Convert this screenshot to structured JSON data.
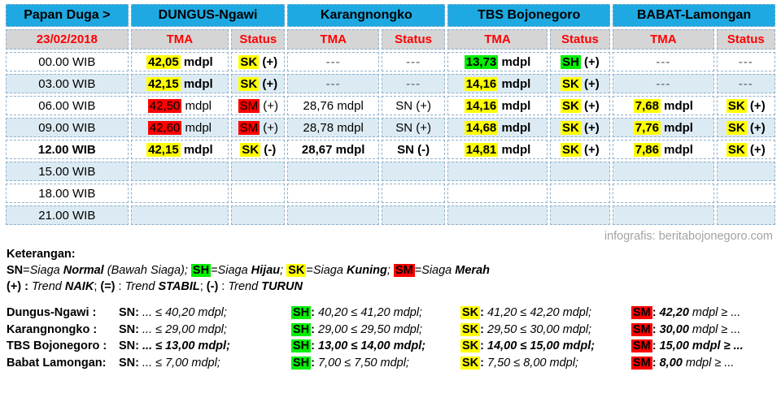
{
  "colors": {
    "header_bg": "#1ea9e2",
    "subheader_bg": "#d5d5d5",
    "alt_row_bg": "#dcebf3",
    "header_text": "#ff0000",
    "highlight_yellow": "#ffff00",
    "highlight_green": "#00ef00",
    "highlight_red": "#ff0000",
    "credit_text": "#a3a3a3"
  },
  "chart_data": {
    "type": "table",
    "title": "Papan Duga >",
    "date": "23/02/2018",
    "columns": [
      "Time",
      "DUNGUS-Ngawi TMA",
      "DUNGUS-Ngawi Status",
      "Karangnongko TMA",
      "Karangnongko Status",
      "TBS Bojonegoro TMA",
      "TBS Bojonegoro Status",
      "BABAT-Lamongan TMA",
      "BABAT-Lamongan Status"
    ],
    "rows": [
      [
        "00.00 WIB",
        "42,05 mdpl",
        "SK (+)",
        "---",
        "---",
        "13,73 mdpl",
        "SH (+)",
        "---",
        "---"
      ],
      [
        "03.00 WIB",
        "42,15 mdpl",
        "SK (+)",
        "---",
        "---",
        "14,16 mdpl",
        "SK (+)",
        "---",
        "---"
      ],
      [
        "06.00 WIB",
        "42,50 mdpl",
        "SM (+)",
        "28,76 mdpl",
        "SN (+)",
        "14,16 mdpl",
        "SK (+)",
        "7,68 mdpl",
        "SK (+)"
      ],
      [
        "09.00 WIB",
        "42,60 mdpl",
        "SM (+)",
        "28,78 mdpl",
        "SN (+)",
        "14,68 mdpl",
        "SK (+)",
        "7,76 mdpl",
        "SK (+)"
      ],
      [
        "12.00 WIB",
        "42,15 mdpl",
        "SK (-)",
        "28,67 mdpl",
        "SN (-)",
        "14,81 mdpl",
        "SK (+)",
        "7,86 mdpl",
        "SK (+)"
      ],
      [
        "15.00 WIB",
        "",
        "",
        "",
        "",
        "",
        "",
        "",
        ""
      ],
      [
        "18.00 WIB",
        "",
        "",
        "",
        "",
        "",
        "",
        "",
        ""
      ],
      [
        "21.00 WIB",
        "",
        "",
        "",
        "",
        "",
        "",
        "",
        ""
      ]
    ]
  },
  "table": {
    "corner": "Papan Duga >",
    "date": "23/02/2018",
    "stations": [
      "DUNGUS-Ngawi",
      "Karangnongko",
      "TBS Bojonegoro",
      "BABAT-Lamongan"
    ],
    "tma_label": "TMA",
    "status_label": "Status",
    "rows": [
      {
        "time": "00.00 WIB",
        "bold": false,
        "cells": [
          {
            "main": "42,05",
            "suffix": " mdpl",
            "hl": "yellow",
            "bold": true
          },
          {
            "main": "SK",
            "suffix": " (+)",
            "hl": "yellow",
            "bold": true
          },
          {
            "main": "---",
            "dash": true
          },
          {
            "main": "---",
            "dash": true
          },
          {
            "main": "13,73",
            "suffix": " mdpl",
            "hl": "green",
            "bold": true
          },
          {
            "main": "SH",
            "suffix": " (+)",
            "hl": "green",
            "bold": true
          },
          {
            "main": "---",
            "dash": true
          },
          {
            "main": "---",
            "dash": true
          }
        ]
      },
      {
        "time": "03.00 WIB",
        "bold": false,
        "cells": [
          {
            "main": "42,15",
            "suffix": " mdpl",
            "hl": "yellow",
            "bold": true
          },
          {
            "main": "SK",
            "suffix": " (+)",
            "hl": "yellow",
            "bold": true
          },
          {
            "main": "---",
            "dash": true
          },
          {
            "main": "---",
            "dash": true
          },
          {
            "main": "14,16",
            "suffix": " mdpl",
            "hl": "yellow",
            "bold": true
          },
          {
            "main": "SK",
            "suffix": " (+)",
            "hl": "yellow",
            "bold": true
          },
          {
            "main": "---",
            "dash": true
          },
          {
            "main": "---",
            "dash": true
          }
        ]
      },
      {
        "time": "06.00 WIB",
        "bold": false,
        "cells": [
          {
            "main": "42,50",
            "suffix": " mdpl",
            "hl": "red",
            "bold": false
          },
          {
            "main": "SM",
            "suffix": " (+)",
            "hl": "red",
            "bold": false
          },
          {
            "main": "28,76",
            "suffix": " mdpl",
            "bold": false
          },
          {
            "main": "SN",
            "suffix": " (+)",
            "bold": false
          },
          {
            "main": "14,16",
            "suffix": " mdpl",
            "hl": "yellow",
            "bold": true
          },
          {
            "main": "SK",
            "suffix": " (+)",
            "hl": "yellow",
            "bold": true
          },
          {
            "main": "7,68",
            "suffix": " mdpl",
            "hl": "yellow",
            "bold": true
          },
          {
            "main": "SK",
            "suffix": " (+)",
            "hl": "yellow",
            "bold": true
          }
        ]
      },
      {
        "time": "09.00 WIB",
        "bold": false,
        "cells": [
          {
            "main": "42,60",
            "suffix": " mdpl",
            "hl": "red",
            "bold": false
          },
          {
            "main": "SM",
            "suffix": " (+)",
            "hl": "red",
            "bold": false
          },
          {
            "main": "28,78",
            "suffix": " mdpl",
            "bold": false
          },
          {
            "main": "SN",
            "suffix": " (+)",
            "bold": false
          },
          {
            "main": "14,68",
            "suffix": " mdpl",
            "hl": "yellow",
            "bold": true
          },
          {
            "main": "SK",
            "suffix": " (+)",
            "hl": "yellow",
            "bold": true
          },
          {
            "main": "7,76",
            "suffix": " mdpl",
            "hl": "yellow",
            "bold": true
          },
          {
            "main": "SK",
            "suffix": " (+)",
            "hl": "yellow",
            "bold": true
          }
        ]
      },
      {
        "time": "12.00 WIB",
        "bold": true,
        "cells": [
          {
            "main": "42,15",
            "suffix": " mdpl",
            "hl": "yellow",
            "bold": true
          },
          {
            "main": "SK",
            "suffix": " (-)",
            "hl": "yellow",
            "bold": true
          },
          {
            "main": "28,67",
            "suffix": " mdpl",
            "bold": true
          },
          {
            "main": "SN",
            "suffix": " (-)",
            "bold": true
          },
          {
            "main": "14,81",
            "suffix": " mdpl",
            "hl": "yellow",
            "bold": true
          },
          {
            "main": "SK",
            "suffix": " (+)",
            "hl": "yellow",
            "bold": true
          },
          {
            "main": "7,86",
            "suffix": " mdpl",
            "hl": "yellow",
            "bold": true
          },
          {
            "main": "SK",
            "suffix": " (+)",
            "hl": "yellow",
            "bold": true
          }
        ]
      },
      {
        "time": "15.00 WIB",
        "bold": false,
        "cells": [
          {
            "main": ""
          },
          {
            "main": ""
          },
          {
            "main": ""
          },
          {
            "main": ""
          },
          {
            "main": ""
          },
          {
            "main": ""
          },
          {
            "main": ""
          },
          {
            "main": ""
          }
        ]
      },
      {
        "time": "18.00 WIB",
        "bold": false,
        "cells": [
          {
            "main": ""
          },
          {
            "main": ""
          },
          {
            "main": ""
          },
          {
            "main": ""
          },
          {
            "main": ""
          },
          {
            "main": ""
          },
          {
            "main": ""
          },
          {
            "main": ""
          }
        ]
      },
      {
        "time": "21.00 WIB",
        "bold": false,
        "cells": [
          {
            "main": ""
          },
          {
            "main": ""
          },
          {
            "main": ""
          },
          {
            "main": ""
          },
          {
            "main": ""
          },
          {
            "main": ""
          },
          {
            "main": ""
          },
          {
            "main": ""
          }
        ]
      }
    ]
  },
  "credit": "infografis: beritabojonegoro.com",
  "legend": {
    "title": "Keterangan:",
    "status_line": [
      {
        "t": "SN",
        "b": true
      },
      {
        "t": "="
      },
      {
        "t": "Siaga ",
        "i": true
      },
      {
        "t": "Normal",
        "b": true,
        "i": true
      },
      {
        "t": " (Bawah Siaga); ",
        "i": true
      },
      {
        "t": "SH",
        "b": true,
        "hl": "green"
      },
      {
        "t": "="
      },
      {
        "t": "Siaga ",
        "i": true
      },
      {
        "t": "Hijau",
        "b": true,
        "i": true
      },
      {
        "t": ";  ",
        "i": true
      },
      {
        "t": "SK",
        "b": true,
        "hl": "yellow"
      },
      {
        "t": "="
      },
      {
        "t": "Siaga ",
        "i": true
      },
      {
        "t": "Kuning",
        "b": true,
        "i": true
      },
      {
        "t": ";  ",
        "i": true
      },
      {
        "t": "SM",
        "b": true,
        "hl": "red"
      },
      {
        "t": "="
      },
      {
        "t": "Siaga ",
        "i": true
      },
      {
        "t": "Merah",
        "b": true,
        "i": true
      }
    ],
    "trend_line": [
      {
        "t": "(+) : ",
        "b": true
      },
      {
        "t": "Trend ",
        "i": true
      },
      {
        "t": "NAIK",
        "b": true,
        "i": true
      },
      {
        "t": "; "
      },
      {
        "t": "(=)",
        "b": true
      },
      {
        "t": " : "
      },
      {
        "t": "Trend ",
        "i": true
      },
      {
        "t": "STABIL",
        "b": true,
        "i": true
      },
      {
        "t": "; "
      },
      {
        "t": "(-)",
        "b": true
      },
      {
        "t": " : "
      },
      {
        "t": "Trend ",
        "i": true
      },
      {
        "t": "TURUN",
        "b": true,
        "i": true
      }
    ]
  },
  "thresholds": {
    "labels": {
      "sn": "SN",
      "sh": "SH",
      "sk": "SK",
      "sm": "SM"
    },
    "rows": [
      {
        "name": "Dungus-Ngawi :",
        "bold": false,
        "sn": "... ≤ 40,20 mdpl;",
        "sh": "40,20 ≤ 41,20 mdpl;",
        "sk": "41,20 ≤ 42,20 mdpl;",
        "sm_value": "42,20",
        "sm_rest": " mdpl ≥ ..."
      },
      {
        "name": "Karangnongko :",
        "bold": false,
        "sn": "... ≤ 29,00 mdpl;",
        "sh": "29,00 ≤ 29,50 mdpl;",
        "sk": "29,50 ≤ 30,00 mdpl;",
        "sm_value": "30,00",
        "sm_rest": " mdpl ≥ ..."
      },
      {
        "name": "TBS Bojonegoro :",
        "bold": true,
        "sn": "... ≤ 13,00 mdpl;",
        "sh": "13,00 ≤ 14,00 mdpl;",
        "sk": "14,00 ≤ 15,00 mdpl;",
        "sm_value": "15,00",
        "sm_rest": " mdpl ≥ ..."
      },
      {
        "name": "Babat Lamongan:",
        "bold": false,
        "sn": "... ≤ 7,00 mdpl;",
        "sh": "7,00 ≤ 7,50 mdpl;",
        "sk": "7,50 ≤ 8,00 mdpl;",
        "sm_value": "8,00",
        "sm_rest": " mdpl ≥ ..."
      }
    ]
  }
}
